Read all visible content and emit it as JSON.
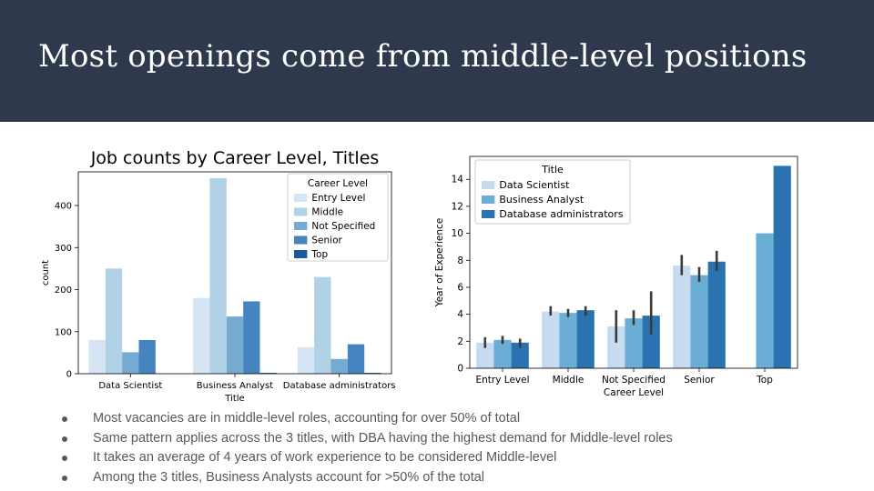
{
  "slide": {
    "title": "Most openings come from middle-level positions"
  },
  "bullets": [
    "Most vacancies are in middle-level roles, accounting for over 50% of total",
    "Same pattern applies across the 3 titles, with DBA having the highest demand for Middle-level roles",
    "It takes an average of 4 years of work experience to be considered Middle-level",
    "Among the 3 titles, Business Analysts account for >50% of the total"
  ],
  "chart_data": [
    {
      "type": "bar",
      "title": "Job counts by Career Level, Titles",
      "xlabel": "Title",
      "ylabel": "count",
      "categories": [
        "Data Scientist",
        "Business Analyst",
        "Database administrators"
      ],
      "ylim": [
        0,
        480
      ],
      "yticks": [
        0,
        100,
        200,
        300,
        400
      ],
      "legend": {
        "title": "Career Level",
        "placement": "top-right"
      },
      "series": [
        {
          "name": "Entry Level",
          "color": "#d6e5f3",
          "values": [
            80,
            180,
            63
          ]
        },
        {
          "name": "Middle",
          "color": "#b1d1e7",
          "values": [
            250,
            465,
            230
          ]
        },
        {
          "name": "Not Specified",
          "color": "#75abd1",
          "values": [
            51,
            136,
            35
          ]
        },
        {
          "name": "Senior",
          "color": "#4584bf",
          "values": [
            80,
            172,
            70
          ]
        },
        {
          "name": "Top",
          "color": "#1c5a9e",
          "values": [
            0,
            2,
            2
          ]
        }
      ]
    },
    {
      "type": "bar",
      "title": "",
      "xlabel": "Career Level",
      "ylabel": "Year of Experience",
      "categories": [
        "Entry Level",
        "Middle",
        "Not Specified",
        "Senior",
        "Top"
      ],
      "ylim": [
        0,
        15.7
      ],
      "yticks": [
        0,
        2,
        4,
        6,
        8,
        10,
        12,
        14
      ],
      "legend": {
        "title": "Title",
        "placement": "top-left"
      },
      "series": [
        {
          "name": "Data Scientist",
          "color": "#c6dbef",
          "values": [
            1.9,
            4.2,
            3.1,
            7.6,
            null
          ],
          "ci": [
            [
              1.5,
              2.3
            ],
            [
              3.9,
              4.6
            ],
            [
              1.9,
              4.3
            ],
            [
              6.9,
              8.4
            ],
            null
          ]
        },
        {
          "name": "Business Analyst",
          "color": "#6aaed6",
          "values": [
            2.1,
            4.1,
            3.7,
            6.9,
            10.0
          ],
          "ci": [
            [
              1.8,
              2.4
            ],
            [
              3.8,
              4.4
            ],
            [
              3.2,
              4.3
            ],
            [
              6.4,
              7.5
            ],
            null
          ]
        },
        {
          "name": "Database administrators",
          "color": "#2b72b0",
          "values": [
            1.9,
            4.3,
            3.9,
            7.9,
            15.0
          ],
          "ci": [
            [
              1.5,
              2.2
            ],
            [
              3.9,
              4.6
            ],
            [
              2.5,
              5.7
            ],
            [
              7.2,
              8.7
            ],
            null
          ]
        }
      ]
    }
  ]
}
